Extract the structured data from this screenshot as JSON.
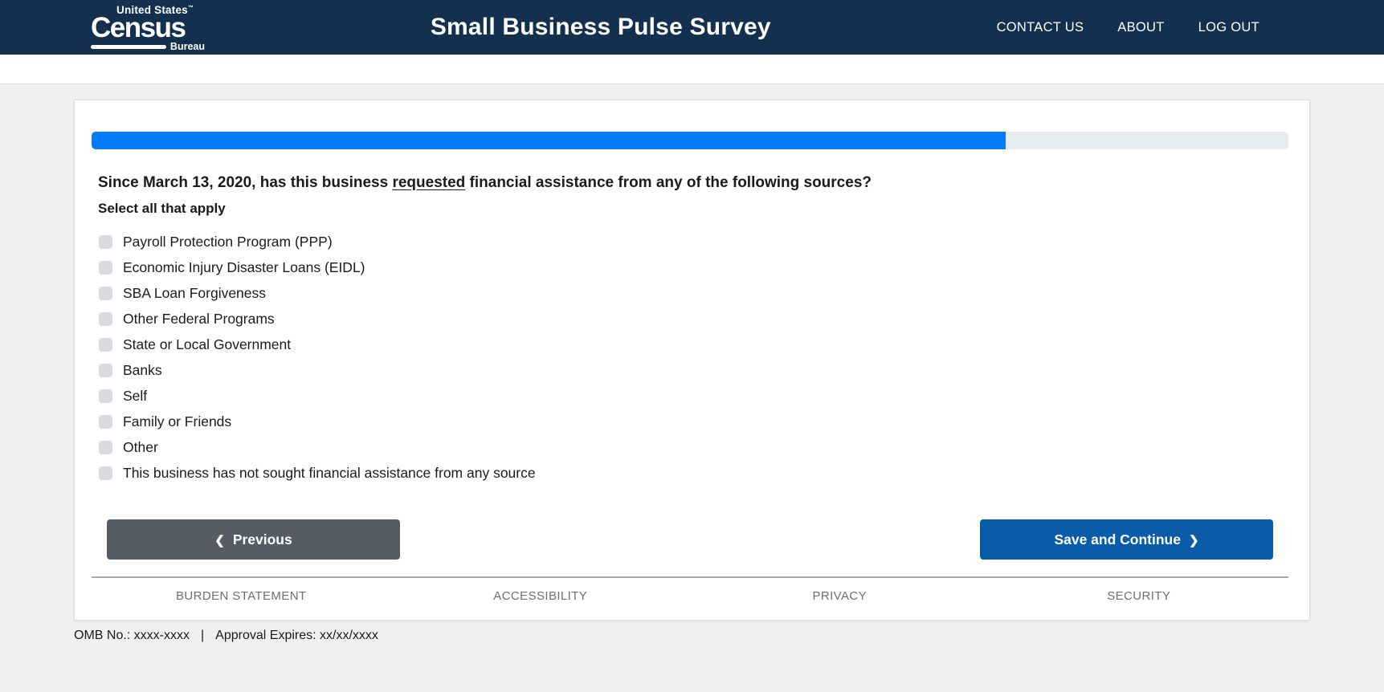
{
  "theme": {
    "header_bg": "#13304f",
    "progress_fill": "#077bf8",
    "progress_track": "#e7eaee",
    "previous_button_bg": "#565c65",
    "save_button_bg": "#0a5ca8",
    "page_bg": "#f0f0f0"
  },
  "header": {
    "logo": {
      "top": "United States",
      "tm": "™",
      "main": "Census",
      "bottom": "Bureau"
    },
    "title": "Small Business Pulse Survey",
    "nav": [
      {
        "label": "CONTACT US"
      },
      {
        "label": "ABOUT"
      },
      {
        "label": "LOG OUT"
      }
    ]
  },
  "survey": {
    "progress_percent": 76.4,
    "question": {
      "prefix": "Since March 13, 2020, has this business ",
      "underlined": "requested",
      "suffix": " financial assistance from any of the following sources?"
    },
    "instruction": "Select all that apply",
    "options": [
      "Payroll Protection Program (PPP)",
      "Economic Injury Disaster Loans (EIDL)",
      "SBA Loan Forgiveness",
      "Other Federal Programs",
      "State or Local Government",
      "Banks",
      "Self",
      "Family or Friends",
      "Other",
      "This business has not sought financial assistance from any source"
    ],
    "buttons": {
      "previous_label": "Previous",
      "previous_icon": "❮",
      "save_label": "Save and Continue",
      "save_icon": "❯"
    }
  },
  "footer": {
    "links": [
      "BURDEN STATEMENT",
      "ACCESSIBILITY",
      "PRIVACY",
      "SECURITY"
    ],
    "omb": "OMB No.: xxxx-xxxx",
    "separator": "|",
    "approval": "Approval Expires: xx/xx/xxxx"
  }
}
